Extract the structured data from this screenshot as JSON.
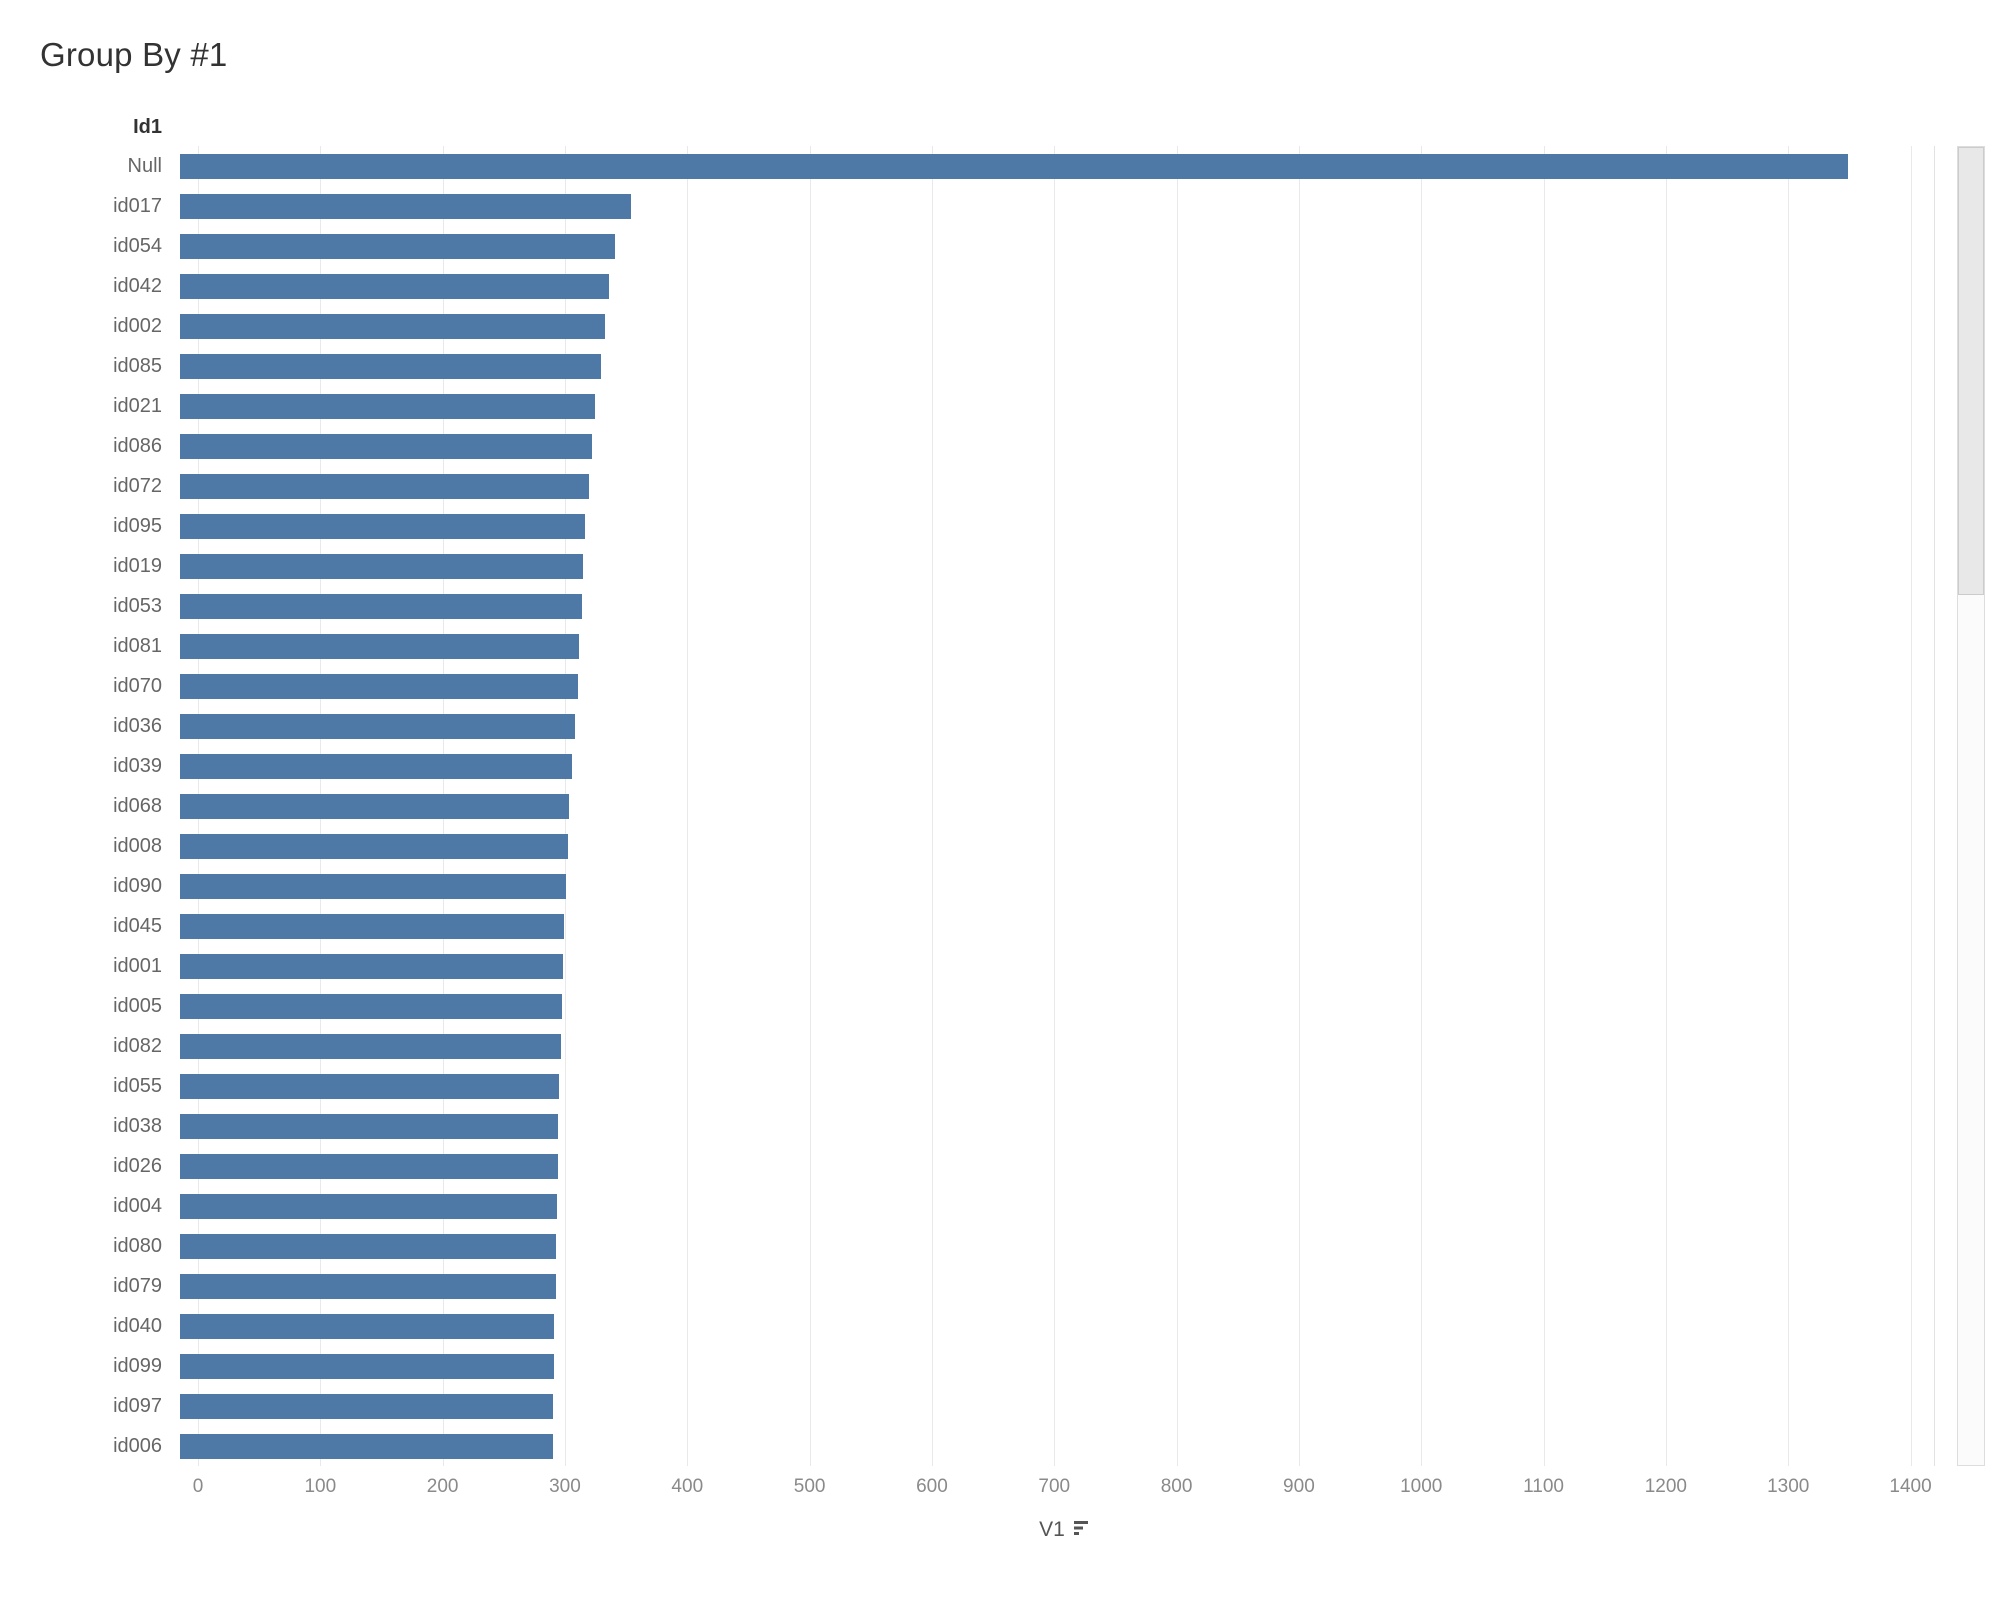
{
  "title": "Group By #1",
  "row_header": "Id1",
  "axis": {
    "label": "V1",
    "ticks": [
      0,
      100,
      200,
      300,
      400,
      500,
      600,
      700,
      800,
      900,
      1000,
      1100,
      1200,
      1300,
      1400
    ],
    "sort_indicator": "descending"
  },
  "colors": {
    "bar": "#4e79a7",
    "grid": "#e9e9e9",
    "tick_text": "#8a8a8a",
    "label_text": "#666666",
    "title_text": "#333333"
  },
  "chart_data": {
    "type": "bar",
    "orientation": "horizontal",
    "title": "Group By #1",
    "xlabel": "V1",
    "ylabel": "Id1",
    "xlim": [
      0,
      1400
    ],
    "plot_max_units": 1420,
    "grid": true,
    "sort": "descending",
    "categories": [
      "Null",
      "id017",
      "id054",
      "id042",
      "id002",
      "id085",
      "id021",
      "id086",
      "id072",
      "id095",
      "id019",
      "id053",
      "id081",
      "id070",
      "id036",
      "id039",
      "id068",
      "id008",
      "id090",
      "id045",
      "id001",
      "id005",
      "id082",
      "id055",
      "id038",
      "id026",
      "id004",
      "id080",
      "id079",
      "id040",
      "id099",
      "id097",
      "id006"
    ],
    "values": [
      1350,
      365,
      352,
      347,
      344,
      341,
      336,
      333,
      331,
      328,
      326,
      325,
      323,
      322,
      320,
      317,
      315,
      314,
      312,
      311,
      310,
      309,
      308,
      307,
      306,
      306,
      305,
      304,
      304,
      303,
      303,
      302,
      302
    ]
  }
}
